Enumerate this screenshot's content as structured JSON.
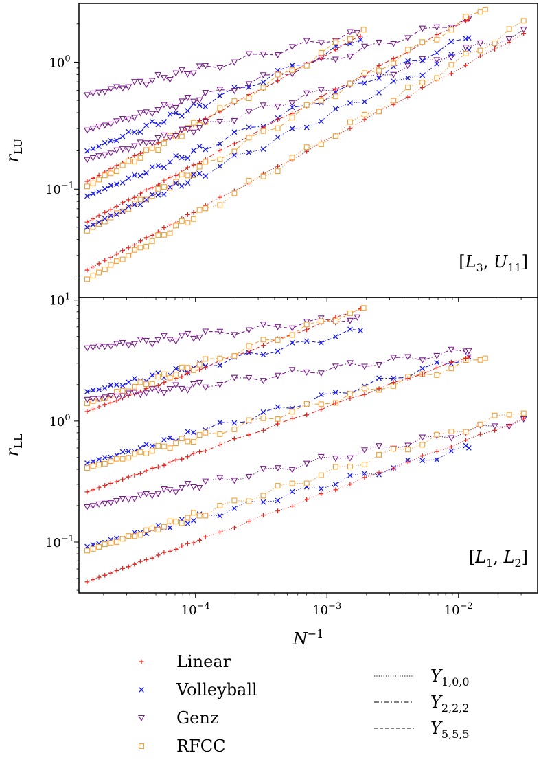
{
  "chart_data": {
    "type": "line",
    "x_scale": "log",
    "y_scale": "log",
    "xlabel": "N^{-1}",
    "xlim": [
      1.3e-05,
      0.04
    ],
    "x_ticks": [
      {
        "value": 0.0001,
        "mantissa": "10",
        "exp": "−4"
      },
      {
        "value": 0.001,
        "mantissa": "10",
        "exp": "−3"
      },
      {
        "value": 0.01,
        "mantissa": "10",
        "exp": "−2"
      }
    ],
    "series_styles": {
      "Linear": {
        "color": "#e8211a",
        "marker": "plus"
      },
      "Volleyball": {
        "color": "#1a1ae8",
        "marker": "x"
      },
      "Genz": {
        "color": "#7a1e8c",
        "marker": "triangle-down"
      },
      "RFCC": {
        "color": "#f5a030",
        "marker": "square"
      }
    },
    "dash_styles": {
      "Y_{1,0,0}": "dotted",
      "Y_{2,2,2}": "dashdot",
      "Y_{5,5,5}": "dashed"
    },
    "legend_methods": [
      "Linear",
      "Volleyball",
      "Genz",
      "RFCC"
    ],
    "legend_models": [
      {
        "base": "Y",
        "sub": "1,0,0",
        "dash": "dotted"
      },
      {
        "base": "Y",
        "sub": "2,2,2",
        "dash": "dashdot"
      },
      {
        "base": "Y",
        "sub": "5,5,5",
        "dash": "dashed"
      }
    ],
    "panels": [
      {
        "label": "[L_3, U_{11}]",
        "label_parts": {
          "a": "L",
          "a_sub": "3",
          "b": "U",
          "b_sub": "11"
        },
        "ylabel_base": "r",
        "ylabel_sub": "LU",
        "ylim": [
          0.014,
          2.9
        ],
        "y_ticks": [
          {
            "value": 0.1,
            "mantissa": "10",
            "exp": "−1"
          },
          {
            "value": 1.0,
            "mantissa": "10",
            "exp": "0"
          },
          {
            "value": 10.0,
            "mantissa": "10",
            "exp": "1"
          }
        ],
        "series": [
          {
            "method": "Genz",
            "model": "Y_{5,5,5}",
            "x_range": [
              1.5e-05,
              0.0017
            ],
            "y_range": [
              0.55,
              1.7
            ]
          },
          {
            "method": "Volleyball",
            "model": "Y_{5,5,5}",
            "x_range": [
              1.5e-05,
              0.0018
            ],
            "y_range": [
              0.2,
              1.5
            ]
          },
          {
            "method": "Genz",
            "model": "Y_{2,2,2}",
            "x_range": [
              1.5e-05,
              0.012
            ],
            "y_range": [
              0.29,
              2.2
            ]
          },
          {
            "method": "Linear",
            "model": "Y_{5,5,5}",
            "x_range": [
              1.5e-05,
              0.0018
            ],
            "y_range": [
              0.115,
              1.6
            ]
          },
          {
            "method": "RFCC",
            "model": "Y_{5,5,5}",
            "x_range": [
              1.5e-05,
              0.0019
            ],
            "y_range": [
              0.105,
              1.8
            ]
          },
          {
            "method": "Genz",
            "model": "Y_{1,0,0}",
            "x_range": [
              1.5e-05,
              0.032
            ],
            "y_range": [
              0.17,
              1.7
            ]
          },
          {
            "method": "Volleyball",
            "model": "Y_{2,2,2}",
            "x_range": [
              1.5e-05,
              0.012
            ],
            "y_range": [
              0.088,
              1.55
            ]
          },
          {
            "method": "Linear",
            "model": "Y_{2,2,2}",
            "x_range": [
              1.5e-05,
              0.012
            ],
            "y_range": [
              0.055,
              2.2
            ]
          },
          {
            "method": "RFCC",
            "model": "Y_{2,2,2}",
            "x_range": [
              1.5e-05,
              0.016
            ],
            "y_range": [
              0.047,
              2.6
            ]
          },
          {
            "method": "Volleyball",
            "model": "Y_{1,0,0}",
            "x_range": [
              1.5e-05,
              0.012
            ],
            "y_range": [
              0.05,
              1.25
            ]
          },
          {
            "method": "Linear",
            "model": "Y_{1,0,0}",
            "x_range": [
              1.5e-05,
              0.032
            ],
            "y_range": [
              0.023,
              1.7
            ]
          },
          {
            "method": "RFCC",
            "model": "Y_{1,0,0}",
            "x_range": [
              1.5e-05,
              0.032
            ],
            "y_range": [
              0.0195,
              2.05
            ]
          }
        ]
      },
      {
        "label": "[L_1, L_2]",
        "label_parts": {
          "a": "L",
          "a_sub": "1",
          "b": "L",
          "b_sub": "2"
        },
        "ylabel_base": "r",
        "ylabel_sub": "LL",
        "ylim": [
          0.038,
          10.5
        ],
        "y_ticks": [
          {
            "value": 0.1,
            "mantissa": "10",
            "exp": "−1"
          },
          {
            "value": 1.0,
            "mantissa": "10",
            "exp": "0"
          },
          {
            "value": 10.0,
            "mantissa": "10",
            "exp": "1"
          }
        ],
        "series": [
          {
            "method": "Genz",
            "model": "Y_{5,5,5}",
            "x_range": [
              1.5e-05,
              0.0017
            ],
            "y_range": [
              4.0,
              7.2
            ]
          },
          {
            "method": "Volleyball",
            "model": "Y_{5,5,5}",
            "x_range": [
              1.5e-05,
              0.0018
            ],
            "y_range": [
              1.75,
              5.6
            ]
          },
          {
            "method": "Linear",
            "model": "Y_{5,5,5}",
            "x_range": [
              1.5e-05,
              0.0018
            ],
            "y_range": [
              1.2,
              8.5
            ]
          },
          {
            "method": "RFCC",
            "model": "Y_{5,5,5}",
            "x_range": [
              1.5e-05,
              0.0019
            ],
            "y_range": [
              1.4,
              8.6
            ]
          },
          {
            "method": "Genz",
            "model": "Y_{2,2,2}",
            "x_range": [
              1.5e-05,
              0.012
            ],
            "y_range": [
              1.5,
              3.8
            ]
          },
          {
            "method": "Volleyball",
            "model": "Y_{2,2,2}",
            "x_range": [
              1.5e-05,
              0.012
            ],
            "y_range": [
              0.45,
              3.4
            ]
          },
          {
            "method": "RFCC",
            "model": "Y_{2,2,2}",
            "x_range": [
              1.5e-05,
              0.016
            ],
            "y_range": [
              0.41,
              3.3
            ]
          },
          {
            "method": "Linear",
            "model": "Y_{2,2,2}",
            "x_range": [
              1.5e-05,
              0.012
            ],
            "y_range": [
              0.26,
              3.4
            ]
          },
          {
            "method": "Genz",
            "model": "Y_{1,0,0}",
            "x_range": [
              1.5e-05,
              0.032
            ],
            "y_range": [
              0.195,
              1.02
            ]
          },
          {
            "method": "Volleyball",
            "model": "Y_{1,0,0}",
            "x_range": [
              1.5e-05,
              0.012
            ],
            "y_range": [
              0.092,
              0.6
            ]
          },
          {
            "method": "RFCC",
            "model": "Y_{1,0,0}",
            "x_range": [
              1.5e-05,
              0.032
            ],
            "y_range": [
              0.085,
              1.25
            ]
          },
          {
            "method": "Linear",
            "model": "Y_{1,0,0}",
            "x_range": [
              1.5e-05,
              0.032
            ],
            "y_range": [
              0.047,
              1.05
            ]
          }
        ]
      }
    ]
  }
}
